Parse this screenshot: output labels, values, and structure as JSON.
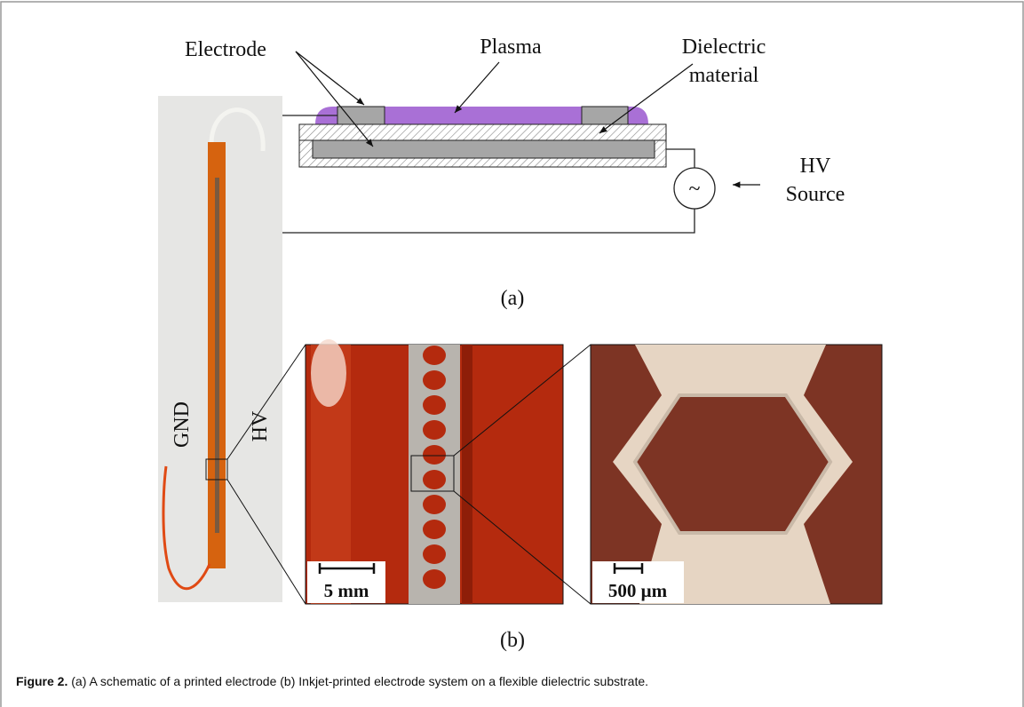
{
  "diagram": {
    "electrode": "Electrode",
    "plasma": "Plasma",
    "dielectric": [
      "Dielectric",
      "material"
    ],
    "source": [
      "HV",
      "Source"
    ],
    "ac_symbol": "~",
    "panel": "(a)"
  },
  "photos": {
    "gnd": "GND",
    "hv": "HV",
    "scale_left": "5 mm",
    "scale_right": "500 μm",
    "panel": "(b)"
  },
  "caption": {
    "label": "Figure 2.",
    "text": "(a) A schematic of a printed electrode (b) Inkjet-printed electrode system on a flexible dielectric substrate."
  }
}
